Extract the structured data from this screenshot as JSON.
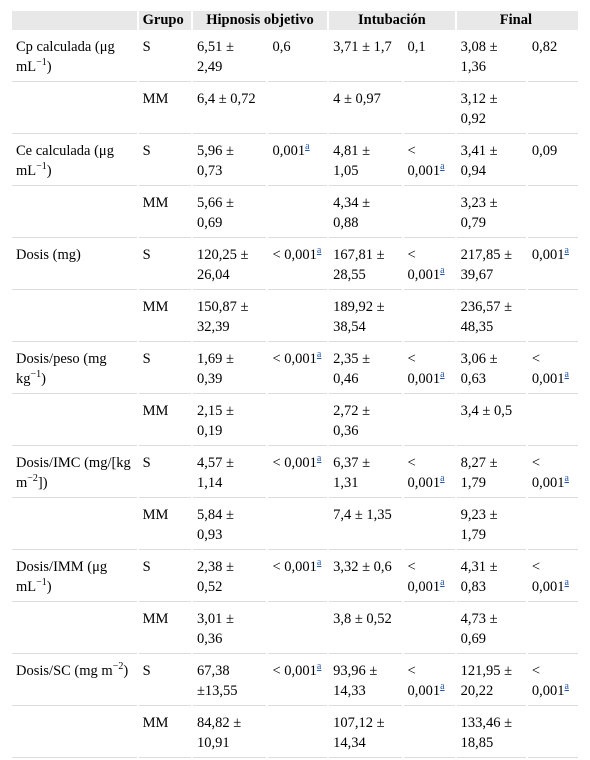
{
  "header": {
    "col0": "",
    "grupo": "Grupo",
    "hipnosis": "Hipnosis objetivo",
    "intubacion": "Intubación",
    "final": "Final"
  },
  "rows": [
    {
      "var": {
        "text": "Cp calculada (μg mL",
        "sup": "−1",
        "tail": ")"
      },
      "s": {
        "hip": "6,51 ± 2,49",
        "hip_p": {
          "t": "0,6",
          "a": ""
        },
        "int": "3,71 ± 1,7",
        "int_p": {
          "t": "0,1",
          "a": ""
        },
        "fin": "3,08 ± 1,36",
        "fin_p": {
          "t": "0,82",
          "a": ""
        }
      },
      "mm": {
        "hip": "6,4 ± 0,72",
        "int": "4 ± 0,97",
        "fin": "3,12 ± 0,92"
      }
    },
    {
      "var": {
        "text": "Ce calculada (μg mL",
        "sup": "−1",
        "tail": ")"
      },
      "s": {
        "hip": "5,96 ± 0,73",
        "hip_p": {
          "t": "0,001",
          "a": "a"
        },
        "int": "4,81 ± 1,05",
        "int_p": {
          "t": "< 0,001",
          "a": "a"
        },
        "fin": "3,41 ± 0,94",
        "fin_p": {
          "t": "0,09",
          "a": ""
        }
      },
      "mm": {
        "hip": "5,66 ± 0,69",
        "int": "4,34 ± 0,88",
        "fin": "3,23 ± 0,79"
      }
    },
    {
      "var": {
        "text": "Dosis (mg)",
        "sup": "",
        "tail": ""
      },
      "s": {
        "hip": "120,25 ± 26,04",
        "hip_p": {
          "t": "< 0,001",
          "a": "a"
        },
        "int": "167,81 ± 28,55",
        "int_p": {
          "t": "< 0,001",
          "a": "a"
        },
        "fin": "217,85 ± 39,67",
        "fin_p": {
          "t": "0,001",
          "a": "a"
        }
      },
      "mm": {
        "hip": "150,87 ± 32,39",
        "int": "189,92 ± 38,54",
        "fin": "236,57 ± 48,35"
      }
    },
    {
      "var": {
        "text": "Dosis/peso (mg kg",
        "sup": "−1",
        "tail": ")"
      },
      "s": {
        "hip": "1,69 ± 0,39",
        "hip_p": {
          "t": "< 0,001",
          "a": "a"
        },
        "int": "2,35 ± 0,46",
        "int_p": {
          "t": "< 0,001",
          "a": "a"
        },
        "fin": "3,06 ± 0,63",
        "fin_p": {
          "t": "< 0,001",
          "a": "a"
        }
      },
      "mm": {
        "hip": "2,15 ± 0,19",
        "int": "2,72 ± 0,36",
        "fin": "3,4 ± 0,5"
      }
    },
    {
      "var": {
        "text": "Dosis/IMC (mg/[kg m",
        "sup": "−2",
        "tail": "])"
      },
      "s": {
        "hip": "4,57 ± 1,14",
        "hip_p": {
          "t": "< 0,001",
          "a": "a"
        },
        "int": "6,37 ± 1,31",
        "int_p": {
          "t": "< 0,001",
          "a": "a"
        },
        "fin": "8,27 ± 1,79",
        "fin_p": {
          "t": "< 0,001",
          "a": "a"
        }
      },
      "mm": {
        "hip": "5,84 ± 0,93",
        "int": "7,4 ± 1,35",
        "fin": "9,23 ± 1,79"
      }
    },
    {
      "var": {
        "text": "Dosis/IMM (μg mL",
        "sup": "−1",
        "tail": ")"
      },
      "s": {
        "hip": "2,38 ± 0,52",
        "hip_p": {
          "t": "< 0,001",
          "a": "a"
        },
        "int": "3,32 ± 0,6",
        "int_p": {
          "t": "< 0,001",
          "a": "a"
        },
        "fin": "4,31 ± 0,83",
        "fin_p": {
          "t": "< 0,001",
          "a": "a"
        }
      },
      "mm": {
        "hip": "3,01 ± 0,36",
        "int": "3,8 ± 0,52",
        "fin": "4,73 ± 0,69"
      }
    },
    {
      "var": {
        "text": "Dosis/SC (mg m",
        "sup": "−2",
        "tail": ")"
      },
      "s": {
        "hip": "67,38 ±13,55",
        "hip_p": {
          "t": "< 0,001",
          "a": "a"
        },
        "int": "93,96 ± 14,33",
        "int_p": {
          "t": "< 0,001",
          "a": "a"
        },
        "fin": "121,95 ± 20,22",
        "fin_p": {
          "t": "< 0,001",
          "a": "a"
        }
      },
      "mm": {
        "hip": "84,82 ± 10,91",
        "int": "107,12 ± 14,34",
        "fin": "133,46 ± 18,85"
      }
    }
  ],
  "groups": {
    "s": "S",
    "mm": "MM"
  }
}
